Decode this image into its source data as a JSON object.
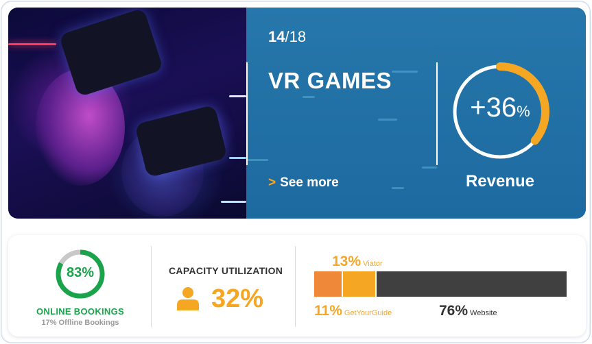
{
  "hero": {
    "index": "14",
    "total": "18",
    "separator": "/",
    "title": "VR GAMES",
    "see_more": "See more",
    "see_more_arrow": ">",
    "revenue_change": "+36",
    "revenue_unit": "%",
    "revenue_progress": 0.36,
    "revenue_label": "Revenue",
    "image_description": "people wearing VR headsets"
  },
  "online": {
    "percent_text": "83%",
    "progress": 0.83,
    "label": "ONLINE BOOKINGS",
    "sub": "17% Offline Bookings"
  },
  "capacity": {
    "label": "CAPACITY UTILIZATION",
    "value": "32%",
    "icon": "person-icon"
  },
  "channels": [
    {
      "pct": "11%",
      "name": "GetYourGuide",
      "share": 11
    },
    {
      "pct": "13%",
      "name": "Viator",
      "share": 13
    },
    {
      "pct": "76%",
      "name": "Website",
      "share": 76
    }
  ],
  "colors": {
    "hero_blue": "#1f6fa5",
    "accent_orange": "#f5a623",
    "green": "#1aa34a",
    "segment_getyourguide": "#f0883a",
    "segment_viator": "#f5a623",
    "segment_website": "#404040"
  }
}
